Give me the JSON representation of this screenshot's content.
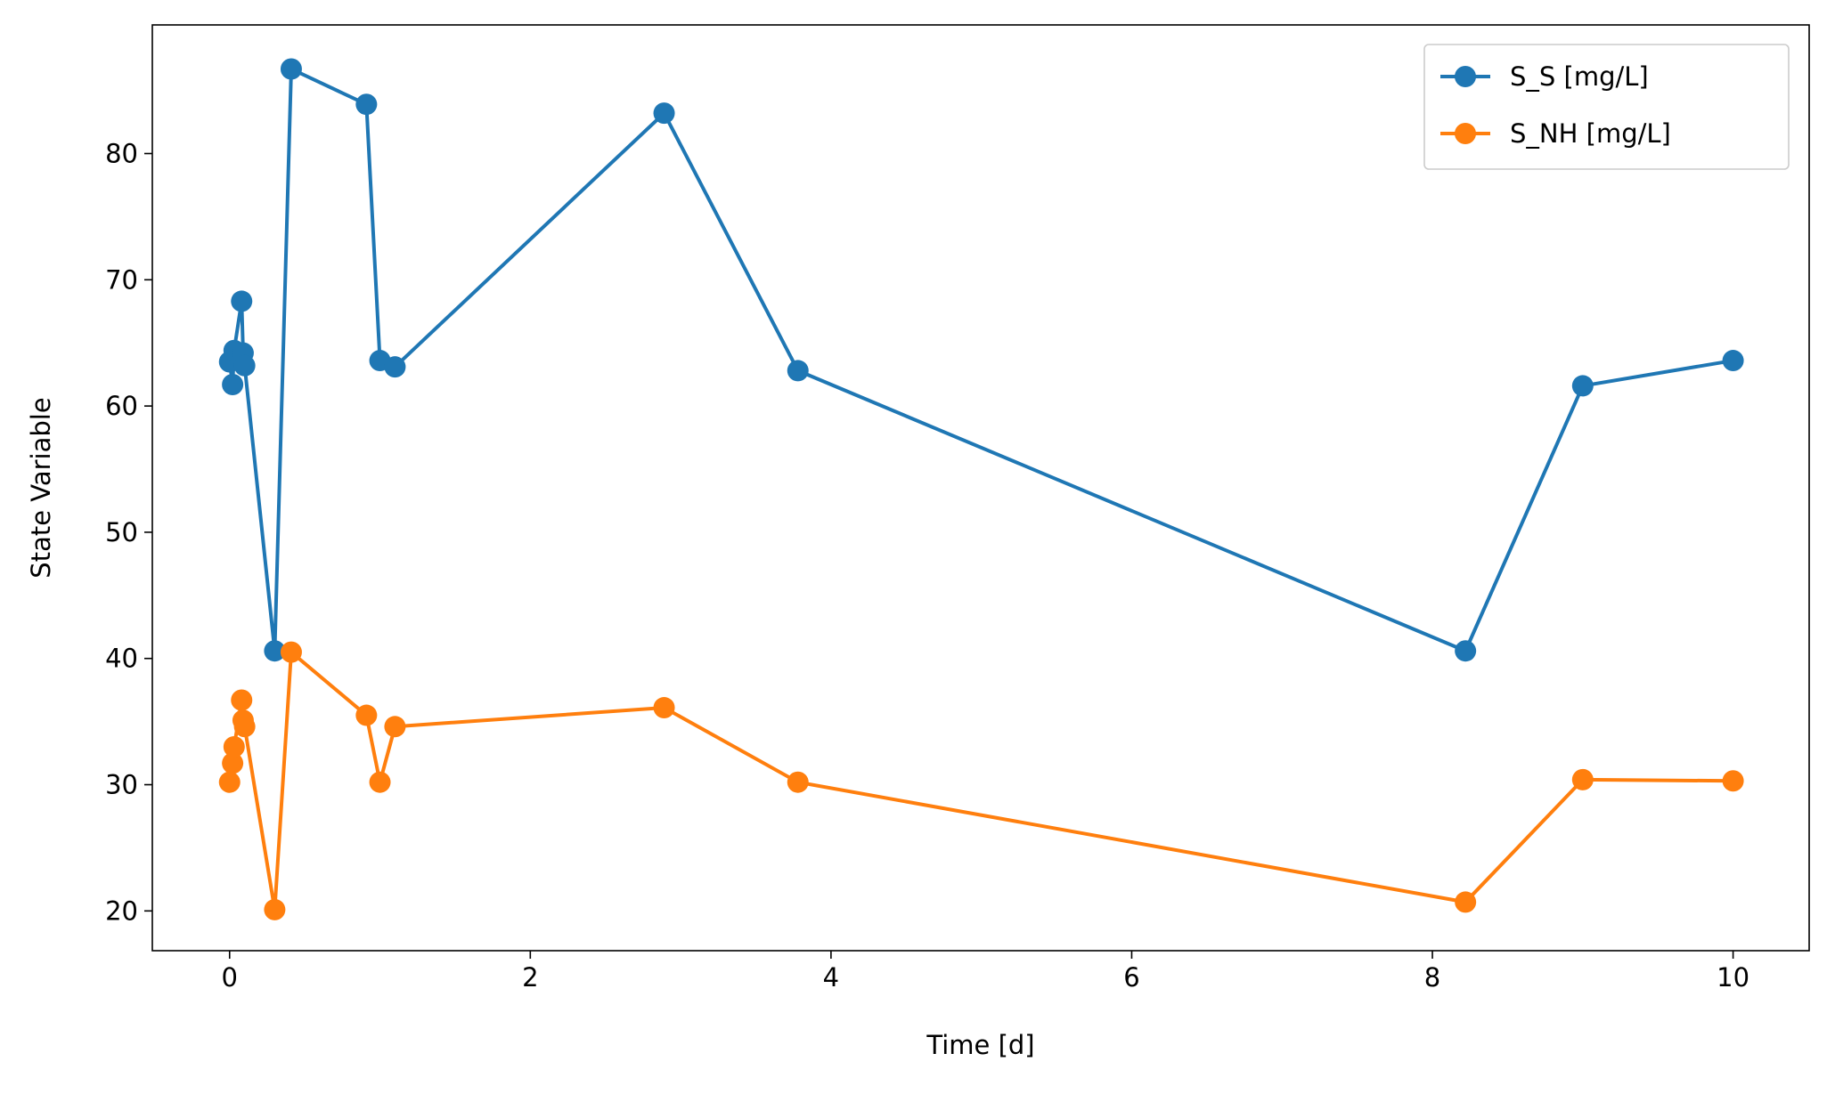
{
  "chart_data": {
    "type": "line",
    "x_label": "Time [d]",
    "y_label": "State Variable",
    "x": [
      0,
      0.02,
      0.03,
      0.08,
      0.09,
      0.1,
      0.3,
      0.41,
      0.91,
      1.0,
      1.1,
      2.89,
      3.78,
      8.22,
      9.0,
      10.0
    ],
    "series": [
      {
        "name": "S_S [mg/L]",
        "color": "#1f77b4",
        "values": [
          63.5,
          61.7,
          64.4,
          68.3,
          64.2,
          63.2,
          40.6,
          86.7,
          83.9,
          63.6,
          63.1,
          83.2,
          62.8,
          40.6,
          61.6,
          63.6
        ]
      },
      {
        "name": "S_NH [mg/L]",
        "color": "#ff7f0e",
        "values": [
          30.2,
          31.7,
          33.0,
          36.7,
          35.1,
          34.6,
          20.1,
          40.5,
          35.5,
          30.2,
          34.6,
          36.1,
          30.2,
          20.7,
          30.4,
          30.3
        ]
      }
    ],
    "xlim": [
      -0.514,
      10.506
    ],
    "xticks": [
      0,
      2,
      4,
      6,
      8,
      10
    ],
    "ylim": [
      16.85,
      90.19
    ],
    "yticks": [
      20,
      30,
      40,
      50,
      60,
      70,
      80
    ],
    "legend": "upper right",
    "grid": false
  }
}
